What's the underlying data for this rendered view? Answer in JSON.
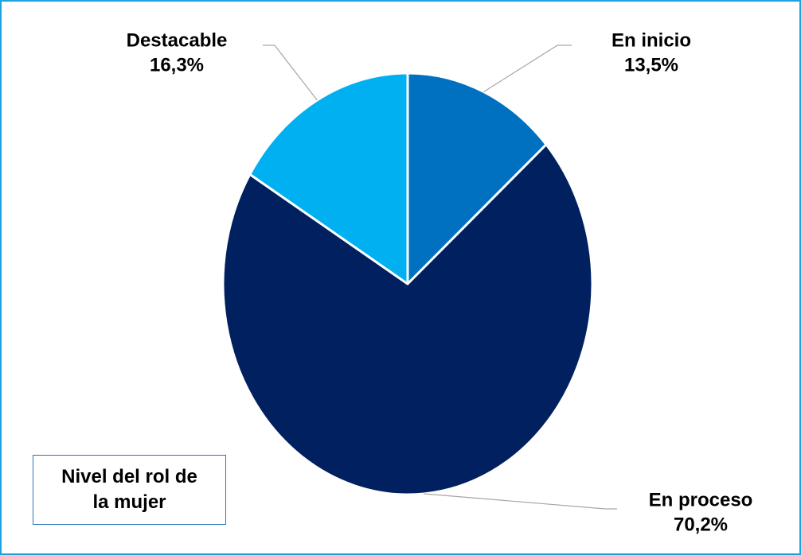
{
  "chart_data": {
    "type": "pie",
    "annotation": "Nivel del rol de la mujer",
    "categories": [
      "En inicio",
      "En proceso",
      "Destacable"
    ],
    "values": [
      13.5,
      70.2,
      16.3
    ],
    "value_labels": [
      "13,5%",
      "70,2%",
      "16,3%"
    ],
    "colors": [
      "#0070c0",
      "#002060",
      "#00b0f0"
    ]
  }
}
